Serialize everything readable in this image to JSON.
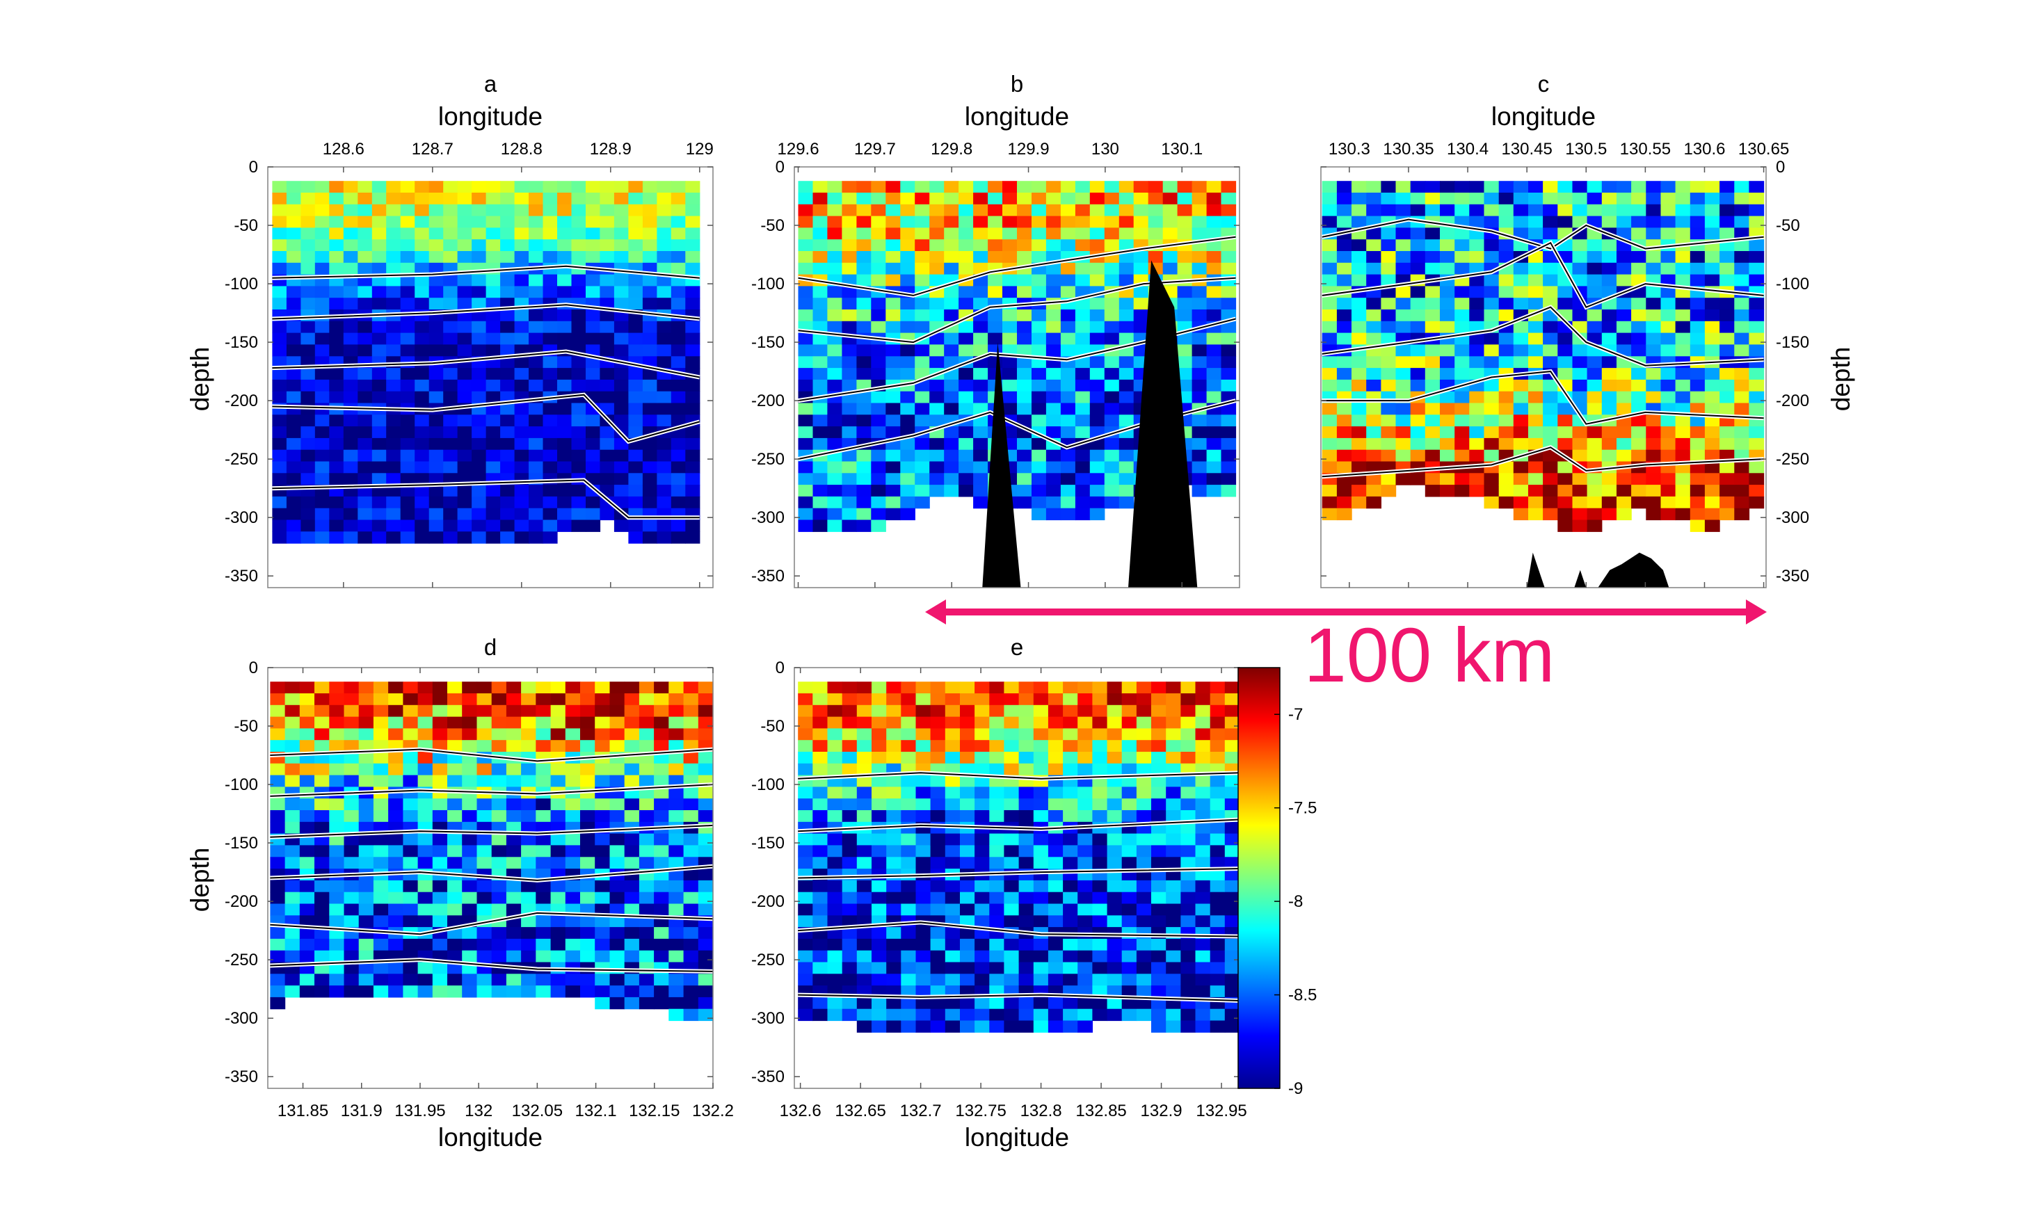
{
  "figure": {
    "scalebar_label": "100 km",
    "scalebar_color": "#f0166e",
    "colorbar": {
      "ticks": [
        -7,
        -7.5,
        -8,
        -8.5,
        -9
      ],
      "range": [
        -9,
        -6.75
      ],
      "colormap": "jet"
    }
  },
  "chart_data": [
    {
      "type": "heatmap",
      "title": "a",
      "xlabel": "longitude",
      "xlabel_position": "top",
      "ylabel": "depth",
      "ylabel_side": "left",
      "xlim": [
        128.515,
        129.015
      ],
      "ylim": [
        -360,
        0
      ],
      "xticks": [
        128.6,
        128.7,
        128.8,
        128.9,
        129
      ],
      "xtick_labels": [
        "128.6",
        "128.7",
        "128.8",
        "128.9",
        "129"
      ],
      "yticks": [
        0,
        -50,
        -100,
        -150,
        -200,
        -250,
        -300,
        -350
      ],
      "data_range": [
        128.52,
        129.0
      ],
      "surface_value": -7.6,
      "deep_value": -8.85,
      "noise": 0.35,
      "thermocline_depth": -80,
      "bottom_depth": [
        [
          128.52,
          -315
        ],
        [
          128.7,
          -318
        ],
        [
          128.8,
          -316
        ],
        [
          128.87,
          -308
        ],
        [
          128.9,
          -300
        ],
        [
          128.93,
          -322
        ],
        [
          129.0,
          -312
        ]
      ],
      "contours": [
        [
          [
            128.52,
            -95
          ],
          [
            128.7,
            -92
          ],
          [
            128.85,
            -85
          ],
          [
            129.0,
            -95
          ]
        ],
        [
          [
            128.52,
            -130
          ],
          [
            128.7,
            -125
          ],
          [
            128.85,
            -118
          ],
          [
            129.0,
            -130
          ]
        ],
        [
          [
            128.52,
            -172
          ],
          [
            128.7,
            -168
          ],
          [
            128.85,
            -158
          ],
          [
            129.0,
            -180
          ]
        ],
        [
          [
            128.52,
            -205
          ],
          [
            128.7,
            -208
          ],
          [
            128.87,
            -195
          ],
          [
            128.92,
            -235
          ],
          [
            129.0,
            -218
          ]
        ],
        [
          [
            128.52,
            -275
          ],
          [
            128.7,
            -272
          ],
          [
            128.87,
            -268
          ],
          [
            128.92,
            -300
          ],
          [
            129.0,
            -300
          ]
        ]
      ],
      "topography": []
    },
    {
      "type": "heatmap",
      "title": "b",
      "xlabel": "longitude",
      "xlabel_position": "top",
      "ylabel": "",
      "ylabel_side": "left",
      "xlim": [
        129.595,
        130.175
      ],
      "ylim": [
        -360,
        0
      ],
      "xticks": [
        129.6,
        129.7,
        129.8,
        129.9,
        130,
        130.1
      ],
      "xtick_labels": [
        "129.6",
        "129.7",
        "129.8",
        "129.9",
        "130",
        "130.1"
      ],
      "yticks": [
        0,
        -50,
        -100,
        -150,
        -200,
        -250,
        -300,
        -350
      ],
      "data_range": [
        129.6,
        130.17
      ],
      "surface_value": -7.5,
      "deep_value": -8.5,
      "noise": 0.6,
      "thermocline_depth": -95,
      "bottom_depth": [
        [
          129.6,
          -310
        ],
        [
          129.7,
          -305
        ],
        [
          129.8,
          -275
        ],
        [
          129.85,
          -285
        ],
        [
          129.95,
          -300
        ],
        [
          130.1,
          -270
        ],
        [
          130.17,
          -280
        ]
      ],
      "contours": [
        [
          [
            129.6,
            -95
          ],
          [
            129.75,
            -110
          ],
          [
            129.85,
            -90
          ],
          [
            129.95,
            -80
          ],
          [
            130.05,
            -70
          ],
          [
            130.17,
            -60
          ]
        ],
        [
          [
            129.6,
            -140
          ],
          [
            129.75,
            -150
          ],
          [
            129.85,
            -120
          ],
          [
            129.95,
            -115
          ],
          [
            130.05,
            -100
          ],
          [
            130.17,
            -95
          ]
        ],
        [
          [
            129.6,
            -200
          ],
          [
            129.75,
            -185
          ],
          [
            129.85,
            -160
          ],
          [
            129.95,
            -165
          ],
          [
            130.05,
            -150
          ],
          [
            130.17,
            -130
          ]
        ],
        [
          [
            129.6,
            -250
          ],
          [
            129.75,
            -230
          ],
          [
            129.85,
            -210
          ],
          [
            129.95,
            -240
          ],
          [
            130.05,
            -220
          ],
          [
            130.17,
            -200
          ]
        ]
      ],
      "topography": [
        [
          [
            129.84,
            -360
          ],
          [
            129.86,
            -150
          ],
          [
            129.89,
            -360
          ]
        ],
        [
          [
            130.03,
            -360
          ],
          [
            130.06,
            -80
          ],
          [
            130.09,
            -120
          ],
          [
            130.12,
            -360
          ]
        ]
      ]
    },
    {
      "type": "heatmap",
      "title": "c",
      "xlabel": "longitude",
      "xlabel_position": "top",
      "ylabel": "depth",
      "ylabel_side": "right",
      "xlim": [
        130.276,
        130.652
      ],
      "ylim": [
        -360,
        0
      ],
      "xticks": [
        130.3,
        130.35,
        130.4,
        130.45,
        130.5,
        130.55,
        130.6,
        130.65
      ],
      "xtick_labels": [
        "130.3",
        "130.35",
        "130.4",
        "130.45",
        "130.5",
        "130.55",
        "130.6",
        "130.65"
      ],
      "yticks": [
        0,
        -50,
        -100,
        -150,
        -200,
        -250,
        -300,
        -350
      ],
      "data_range": [
        130.277,
        130.65
      ],
      "surface_value": -8.3,
      "deep_value": -6.9,
      "noise": 0.7,
      "thermocline_depth": -220,
      "bottom_depth": [
        [
          130.277,
          -300
        ],
        [
          130.35,
          -270
        ],
        [
          130.4,
          -275
        ],
        [
          130.45,
          -300
        ],
        [
          130.5,
          -305
        ],
        [
          130.55,
          -290
        ],
        [
          130.6,
          -305
        ],
        [
          130.65,
          -290
        ]
      ],
      "contours": [
        [
          [
            130.277,
            -60
          ],
          [
            130.35,
            -45
          ],
          [
            130.42,
            -55
          ],
          [
            130.47,
            -70
          ],
          [
            130.5,
            -50
          ],
          [
            130.55,
            -70
          ],
          [
            130.65,
            -60
          ]
        ],
        [
          [
            130.277,
            -110
          ],
          [
            130.35,
            -100
          ],
          [
            130.42,
            -90
          ],
          [
            130.47,
            -65
          ],
          [
            130.5,
            -120
          ],
          [
            130.55,
            -100
          ],
          [
            130.65,
            -110
          ]
        ],
        [
          [
            130.277,
            -160
          ],
          [
            130.35,
            -150
          ],
          [
            130.42,
            -140
          ],
          [
            130.47,
            -120
          ],
          [
            130.5,
            -150
          ],
          [
            130.55,
            -170
          ],
          [
            130.65,
            -165
          ]
        ],
        [
          [
            130.277,
            -200
          ],
          [
            130.35,
            -200
          ],
          [
            130.42,
            -180
          ],
          [
            130.47,
            -175
          ],
          [
            130.5,
            -220
          ],
          [
            130.55,
            -210
          ],
          [
            130.65,
            -215
          ]
        ],
        [
          [
            130.277,
            -265
          ],
          [
            130.35,
            -260
          ],
          [
            130.42,
            -255
          ],
          [
            130.47,
            -240
          ],
          [
            130.5,
            -260
          ],
          [
            130.55,
            -255
          ],
          [
            130.65,
            -250
          ]
        ]
      ],
      "topography": [
        [
          [
            130.45,
            -360
          ],
          [
            130.455,
            -330
          ],
          [
            130.465,
            -360
          ],
          [
            130.49,
            -360
          ],
          [
            130.495,
            -345
          ],
          [
            130.5,
            -360
          ],
          [
            130.51,
            -360
          ],
          [
            130.52,
            -345
          ],
          [
            130.53,
            -340
          ],
          [
            130.545,
            -330
          ],
          [
            130.555,
            -335
          ],
          [
            130.565,
            -345
          ],
          [
            130.57,
            -360
          ]
        ]
      ]
    },
    {
      "type": "heatmap",
      "title": "d",
      "xlabel": "longitude",
      "xlabel_position": "bottom",
      "ylabel": "depth",
      "ylabel_side": "left",
      "xlim": [
        131.82,
        132.2
      ],
      "ylim": [
        -360,
        0
      ],
      "xticks": [
        131.85,
        131.9,
        131.95,
        132,
        132.05,
        132.1,
        132.15,
        132.2
      ],
      "xtick_labels": [
        "131.85",
        "131.9",
        "131.95",
        "132",
        "132.05",
        "132.1",
        "132.15",
        "132.2"
      ],
      "yticks": [
        0,
        -50,
        -100,
        -150,
        -200,
        -250,
        -300,
        -350
      ],
      "data_range": [
        131.822,
        132.2
      ],
      "surface_value": -7.0,
      "deep_value": -8.6,
      "noise": 0.65,
      "thermocline_depth": -75,
      "bottom_depth": [
        [
          131.822,
          -285
        ],
        [
          131.9,
          -272
        ],
        [
          132.0,
          -278
        ],
        [
          132.1,
          -282
        ],
        [
          132.2,
          -298
        ]
      ],
      "contours": [
        [
          [
            131.822,
            -75
          ],
          [
            131.95,
            -70
          ],
          [
            132.05,
            -80
          ],
          [
            132.2,
            -70
          ]
        ],
        [
          [
            131.822,
            -110
          ],
          [
            131.95,
            -105
          ],
          [
            132.05,
            -108
          ],
          [
            132.2,
            -100
          ]
        ],
        [
          [
            131.822,
            -145
          ],
          [
            131.95,
            -140
          ],
          [
            132.05,
            -142
          ],
          [
            132.2,
            -135
          ]
        ],
        [
          [
            131.822,
            -180
          ],
          [
            131.95,
            -175
          ],
          [
            132.05,
            -182
          ],
          [
            132.2,
            -170
          ]
        ],
        [
          [
            131.822,
            -220
          ],
          [
            131.95,
            -228
          ],
          [
            132.05,
            -210
          ],
          [
            132.2,
            -215
          ]
        ],
        [
          [
            131.822,
            -255
          ],
          [
            131.95,
            -250
          ],
          [
            132.05,
            -258
          ],
          [
            132.2,
            -260
          ]
        ]
      ],
      "topography": []
    },
    {
      "type": "heatmap",
      "title": "e",
      "xlabel": "longitude",
      "xlabel_position": "bottom",
      "ylabel": "",
      "ylabel_side": "left",
      "xlim": [
        132.595,
        132.965
      ],
      "ylim": [
        -360,
        0
      ],
      "xticks": [
        132.6,
        132.65,
        132.7,
        132.75,
        132.8,
        132.85,
        132.9,
        132.95
      ],
      "xtick_labels": [
        "132.6",
        "132.65",
        "132.7",
        "132.75",
        "132.8",
        "132.85",
        "132.9",
        "132.95"
      ],
      "yticks": [
        0,
        -50,
        -100,
        -150,
        -200,
        -250,
        -300,
        -350
      ],
      "data_range": [
        132.598,
        132.965
      ],
      "surface_value": -7.2,
      "deep_value": -8.7,
      "noise": 0.55,
      "thermocline_depth": -85,
      "bottom_depth": [
        [
          132.598,
          -295
        ],
        [
          132.7,
          -310
        ],
        [
          132.8,
          -305
        ],
        [
          132.88,
          -300
        ],
        [
          132.965,
          -312
        ]
      ],
      "contours": [
        [
          [
            132.598,
            -95
          ],
          [
            132.7,
            -90
          ],
          [
            132.8,
            -95
          ],
          [
            132.965,
            -90
          ]
        ],
        [
          [
            132.598,
            -140
          ],
          [
            132.7,
            -135
          ],
          [
            132.8,
            -138
          ],
          [
            132.965,
            -130
          ]
        ],
        [
          [
            132.598,
            -180
          ],
          [
            132.7,
            -178
          ],
          [
            132.8,
            -175
          ],
          [
            132.965,
            -172
          ]
        ],
        [
          [
            132.598,
            -225
          ],
          [
            132.7,
            -218
          ],
          [
            132.8,
            -228
          ],
          [
            132.965,
            -230
          ]
        ],
        [
          [
            132.598,
            -280
          ],
          [
            132.7,
            -282
          ],
          [
            132.8,
            -280
          ],
          [
            132.965,
            -285
          ]
        ]
      ],
      "topography": []
    }
  ]
}
